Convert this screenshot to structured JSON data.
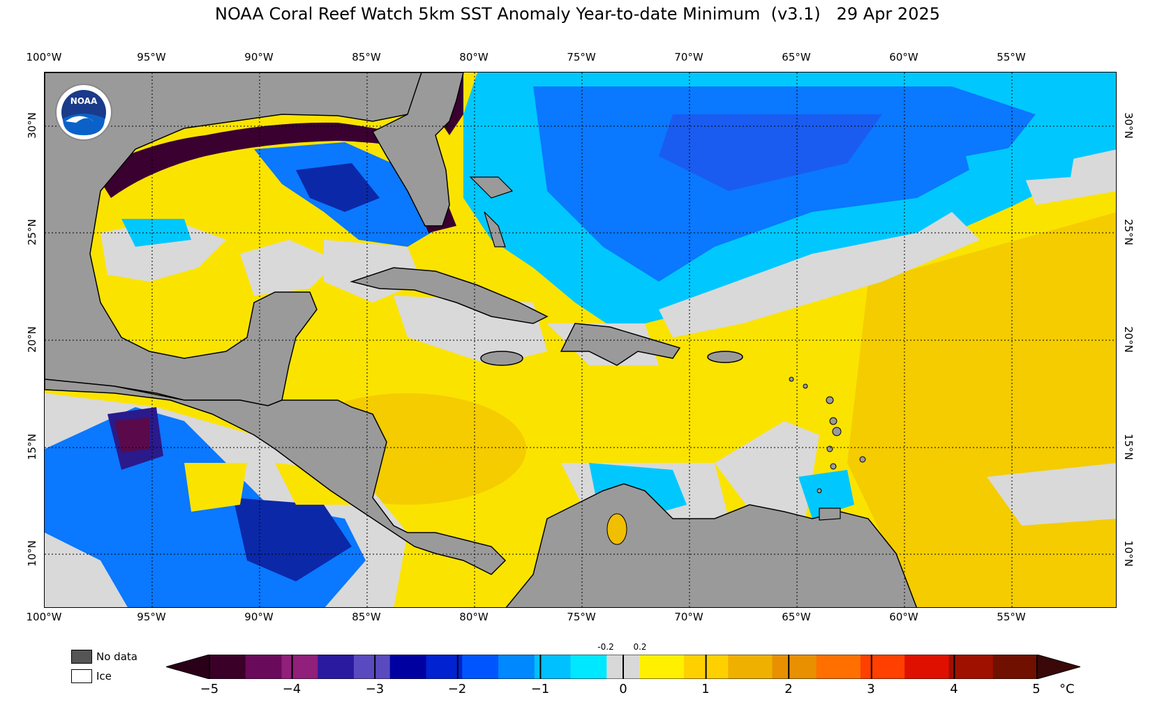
{
  "title": "NOAA Coral Reef Watch 5km SST Anomaly Year-to-date Minimum  (v3.1)   29 Apr 2025",
  "lon_labels": [
    "100°W",
    "95°W",
    "90°W",
    "85°W",
    "80°W",
    "75°W",
    "70°W",
    "65°W",
    "60°W",
    "55°W"
  ],
  "lat_labels": [
    "30°N",
    "25°N",
    "20°N",
    "15°N",
    "10°N"
  ],
  "logo": {
    "text": "NOAA",
    "icon": "noaa-logo-icon"
  },
  "legend": {
    "no_data": "No data",
    "ice": "Ice",
    "no_data_color": "#555555",
    "ice_color": "#ffffff"
  },
  "colorbar": {
    "ticks": [
      "−5",
      "−4",
      "−3",
      "−2",
      "−1",
      "0",
      "1",
      "2",
      "3",
      "4",
      "5"
    ],
    "small_ticks": [
      "-0.2",
      "0.2"
    ],
    "unit": "°C",
    "colors": [
      "#3a0028",
      "#6a0a5a",
      "#90207a",
      "#2a1aa0",
      "#5a4ac0",
      "#0000a0",
      "#0022d0",
      "#0055ff",
      "#0088ff",
      "#00c0ff",
      "#00e8ff",
      "#d8d8d8",
      "#fff000",
      "#ffd000",
      "#f0b000",
      "#e89000",
      "#ff7000",
      "#ff4000",
      "#e01000",
      "#a01000",
      "#701000"
    ]
  },
  "map_colors": {
    "land": "#9a9a9a",
    "nodata": "#d9d9d9",
    "warm": "#fbe300",
    "warm2": "#f2c200",
    "cool": "#00c8ff",
    "cool2": "#0077ff",
    "cold": "#001c9a",
    "coldest": "#3a0030"
  }
}
